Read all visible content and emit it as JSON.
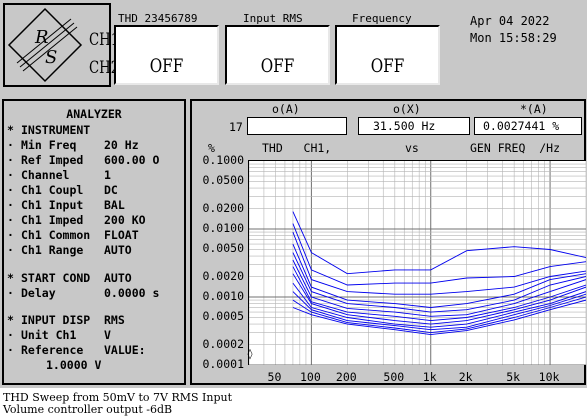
{
  "header": {
    "channels": [
      "CH1",
      "CH2"
    ],
    "measurements": [
      {
        "title": "THD 23456789",
        "value": "OFF"
      },
      {
        "title": "Input RMS",
        "value": "OFF"
      },
      {
        "title": "Frequency",
        "value": "OFF"
      }
    ],
    "date": "Apr 04 2022",
    "day_time": "Mon 15:58:29"
  },
  "analyzer": {
    "title": "ANALYZER",
    "rows": [
      {
        "bullet": "*",
        "label": "INSTRUMENT",
        "value": ""
      },
      {
        "bullet": "·",
        "label": "Min Freq",
        "value": "20 Hz"
      },
      {
        "bullet": "·",
        "label": "Ref Imped",
        "value": "600.00 O"
      },
      {
        "bullet": "·",
        "label": "Channel",
        "value": "1"
      },
      {
        "bullet": "·",
        "label": "Ch1 Coupl",
        "value": "DC"
      },
      {
        "bullet": "·",
        "label": "Ch1 Input",
        "value": "BAL"
      },
      {
        "bullet": "·",
        "label": "Ch1 Imped",
        "value": "200 KO"
      },
      {
        "bullet": "·",
        "label": "Ch1 Common",
        "value": "FLOAT"
      },
      {
        "bullet": "·",
        "label": "Ch1 Range",
        "value": "AUTO"
      },
      {
        "bullet": "*",
        "label": "START COND",
        "value": "AUTO"
      },
      {
        "bullet": "·",
        "label": "Delay",
        "value": "0.0000 s"
      },
      {
        "bullet": "*",
        "label": "INPUT DISP",
        "value": "RMS"
      },
      {
        "bullet": "·",
        "label": "Unit Ch1",
        "value": "V"
      },
      {
        "bullet": "·",
        "label": "Reference",
        "value": "VALUE:"
      },
      {
        "bullet": "",
        "label": "",
        "value": "1.0000 V"
      }
    ]
  },
  "graph": {
    "cursor_headers": [
      "o(A)",
      "o(X)",
      "*(A)"
    ],
    "cursor_index": "17",
    "cursor_a_value": "",
    "cursor_x_value": "31.500  Hz",
    "cursor_star_value": "0.0027441 %",
    "ylabel": "%",
    "title_left": "THD   CH1,",
    "title_vs": "vs",
    "title_right": "GEN FREQ  /Hz",
    "marker": "◊"
  },
  "chart_data": {
    "type": "line",
    "xscale": "log",
    "yscale": "log",
    "xlim": [
      30,
      20000
    ],
    "ylim": [
      0.0001,
      0.1
    ],
    "xticks": [
      {
        "v": 50,
        "label": "50"
      },
      {
        "v": 100,
        "label": "100"
      },
      {
        "v": 200,
        "label": "200"
      },
      {
        "v": 500,
        "label": "500"
      },
      {
        "v": 1000,
        "label": "1k"
      },
      {
        "v": 2000,
        "label": "2k"
      },
      {
        "v": 5000,
        "label": "5k"
      },
      {
        "v": 10000,
        "label": "10k"
      }
    ],
    "yticks": [
      {
        "v": 0.1,
        "label": "0.1000"
      },
      {
        "v": 0.05,
        "label": "0.0500"
      },
      {
        "v": 0.02,
        "label": "0.0200"
      },
      {
        "v": 0.01,
        "label": "0.0100"
      },
      {
        "v": 0.005,
        "label": "0.0050"
      },
      {
        "v": 0.002,
        "label": "0.0020"
      },
      {
        "v": 0.001,
        "label": "0.0010"
      },
      {
        "v": 0.0005,
        "label": "0.0005"
      },
      {
        "v": 0.0002,
        "label": "0.0002"
      },
      {
        "v": 0.0001,
        "label": "0.0001"
      }
    ],
    "grid": true,
    "line_color": "#0000ee",
    "x": [
      70,
      100,
      200,
      500,
      1000,
      2000,
      5000,
      10000,
      20000
    ],
    "series": [
      {
        "values": [
          0.018,
          0.0045,
          0.0022,
          0.0025,
          0.0025,
          0.0048,
          0.0055,
          0.005,
          0.0038
        ]
      },
      {
        "values": [
          0.012,
          0.0025,
          0.0015,
          0.0016,
          0.0016,
          0.0019,
          0.002,
          0.0028,
          0.0033
        ]
      },
      {
        "values": [
          0.009,
          0.0018,
          0.0012,
          0.0011,
          0.0011,
          0.0012,
          0.0014,
          0.002,
          0.0024
        ]
      },
      {
        "values": [
          0.006,
          0.0014,
          0.0009,
          0.0008,
          0.0007,
          0.0008,
          0.0011,
          0.0018,
          0.0022
        ]
      },
      {
        "values": [
          0.0045,
          0.0012,
          0.0008,
          0.0007,
          0.0006,
          0.00065,
          0.0009,
          0.0015,
          0.002
        ]
      },
      {
        "values": [
          0.0035,
          0.001,
          0.00068,
          0.0006,
          0.00052,
          0.00055,
          0.0008,
          0.0012,
          0.0018
        ]
      },
      {
        "values": [
          0.0028,
          0.00085,
          0.0006,
          0.00052,
          0.00045,
          0.0005,
          0.0007,
          0.001,
          0.0015
        ]
      },
      {
        "values": [
          0.0022,
          0.0008,
          0.00055,
          0.00045,
          0.0004,
          0.00045,
          0.00065,
          0.0009,
          0.0014
        ]
      },
      {
        "values": [
          0.0016,
          0.0007,
          0.0005,
          0.0004,
          0.00036,
          0.0004,
          0.0006,
          0.0008,
          0.0012
        ]
      },
      {
        "values": [
          0.0012,
          0.00065,
          0.00045,
          0.00038,
          0.00033,
          0.00036,
          0.00055,
          0.00075,
          0.0011
        ]
      },
      {
        "values": [
          0.0009,
          0.0006,
          0.00042,
          0.00035,
          0.0003,
          0.00034,
          0.0005,
          0.0007,
          0.001
        ]
      },
      {
        "values": [
          0.0007,
          0.00055,
          0.0004,
          0.00033,
          0.00028,
          0.00032,
          0.00046,
          0.00065,
          0.0009
        ]
      }
    ]
  },
  "caption": {
    "line1": "THD Sweep from 50mV to 7V RMS Input",
    "line2": "Volume controller output -6dB"
  }
}
